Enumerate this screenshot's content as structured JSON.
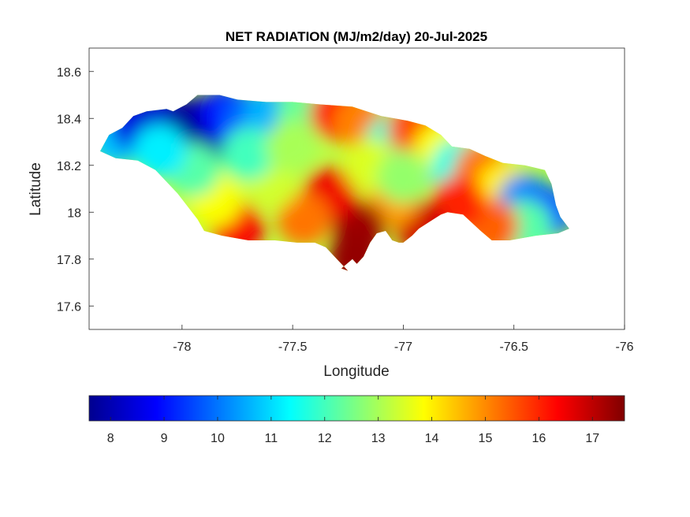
{
  "figure": {
    "title": "NET RADIATION (MJ/m2/day) 20-Jul-2025"
  },
  "chart_data": {
    "type": "heatmap",
    "title": "NET RADIATION (MJ/m2/day) 20-Jul-2025",
    "xlabel": "Longitude",
    "ylabel": "Latitude",
    "xlim": [
      -78.42,
      -76.0
    ],
    "ylim": [
      17.5,
      18.7
    ],
    "xticks": [
      -78,
      -77.5,
      -77,
      -76.5,
      -76
    ],
    "yticks": [
      17.6,
      17.8,
      18,
      18.2,
      18.4,
      18.6
    ],
    "grid": false,
    "colormap": "jet",
    "colorbar": {
      "location": "south",
      "range": [
        7.6,
        17.6
      ],
      "ticks": [
        8,
        9,
        10,
        11,
        12,
        13,
        14,
        15,
        16,
        17
      ]
    },
    "colors": [
      "#00008f",
      "#0000ff",
      "#00ffff",
      "#ffff00",
      "#ff0000",
      "#800000"
    ],
    "region_outline": [
      [
        -78.37,
        18.26
      ],
      [
        -78.33,
        18.33
      ],
      [
        -78.27,
        18.36
      ],
      [
        -78.22,
        18.41
      ],
      [
        -78.16,
        18.43
      ],
      [
        -78.07,
        18.44
      ],
      [
        -78.04,
        18.43
      ],
      [
        -77.98,
        18.46
      ],
      [
        -77.93,
        18.5
      ],
      [
        -77.83,
        18.5
      ],
      [
        -77.75,
        18.48
      ],
      [
        -77.62,
        18.47
      ],
      [
        -77.5,
        18.47
      ],
      [
        -77.38,
        18.46
      ],
      [
        -77.23,
        18.45
      ],
      [
        -77.1,
        18.41
      ],
      [
        -76.98,
        18.39
      ],
      [
        -76.9,
        18.37
      ],
      [
        -76.83,
        18.33
      ],
      [
        -76.78,
        18.28
      ],
      [
        -76.7,
        18.27
      ],
      [
        -76.63,
        18.24
      ],
      [
        -76.55,
        18.21
      ],
      [
        -76.45,
        18.2
      ],
      [
        -76.36,
        18.18
      ],
      [
        -76.33,
        18.12
      ],
      [
        -76.31,
        18.03
      ],
      [
        -76.29,
        17.98
      ],
      [
        -76.25,
        17.93
      ],
      [
        -76.3,
        17.91
      ],
      [
        -76.4,
        17.9
      ],
      [
        -76.52,
        17.88
      ],
      [
        -76.6,
        17.88
      ],
      [
        -76.65,
        17.92
      ],
      [
        -76.73,
        17.99
      ],
      [
        -76.8,
        18.0
      ],
      [
        -76.83,
        17.99
      ],
      [
        -76.88,
        17.96
      ],
      [
        -76.93,
        17.93
      ],
      [
        -76.96,
        17.9
      ],
      [
        -77.0,
        17.87
      ],
      [
        -77.02,
        17.87
      ],
      [
        -77.05,
        17.88
      ],
      [
        -77.08,
        17.92
      ],
      [
        -77.12,
        17.91
      ],
      [
        -77.15,
        17.87
      ],
      [
        -77.18,
        17.81
      ],
      [
        -77.19,
        17.8
      ],
      [
        -77.21,
        17.78
      ],
      [
        -77.23,
        17.8
      ],
      [
        -77.28,
        17.76
      ],
      [
        -77.22,
        17.74
      ],
      [
        -77.25,
        17.75
      ],
      [
        -77.3,
        17.8
      ],
      [
        -77.35,
        17.85
      ],
      [
        -77.4,
        17.87
      ],
      [
        -77.48,
        17.87
      ],
      [
        -77.58,
        17.88
      ],
      [
        -77.7,
        17.88
      ],
      [
        -77.82,
        17.9
      ],
      [
        -77.9,
        17.92
      ],
      [
        -77.93,
        17.97
      ],
      [
        -78.02,
        18.08
      ],
      [
        -78.12,
        18.18
      ],
      [
        -78.2,
        18.22
      ],
      [
        -78.3,
        18.23
      ]
    ],
    "value_field": [
      {
        "lon": -78.3,
        "lat": 18.31,
        "value": 10.8
      },
      {
        "lon": -78.2,
        "lat": 18.37,
        "value": 8.6
      },
      {
        "lon": -78.1,
        "lat": 18.4,
        "value": 8.4
      },
      {
        "lon": -77.95,
        "lat": 18.38,
        "value": 7.9
      },
      {
        "lon": -77.87,
        "lat": 18.33,
        "value": 7.8
      },
      {
        "lon": -77.8,
        "lat": 18.42,
        "value": 9.0
      },
      {
        "lon": -77.7,
        "lat": 18.4,
        "value": 9.8
      },
      {
        "lon": -77.6,
        "lat": 18.41,
        "value": 10.6
      },
      {
        "lon": -77.45,
        "lat": 18.42,
        "value": 12.4
      },
      {
        "lon": -77.3,
        "lat": 18.42,
        "value": 16.3
      },
      {
        "lon": -77.2,
        "lat": 18.38,
        "value": 15.1
      },
      {
        "lon": -77.05,
        "lat": 18.3,
        "value": 11.8
      },
      {
        "lon": -76.9,
        "lat": 18.24,
        "value": 10.6
      },
      {
        "lon": -76.95,
        "lat": 18.35,
        "value": 15.6
      },
      {
        "lon": -76.83,
        "lat": 18.27,
        "value": 13.8
      },
      {
        "lon": -76.75,
        "lat": 18.2,
        "value": 11.6
      },
      {
        "lon": -76.65,
        "lat": 18.18,
        "value": 15.2
      },
      {
        "lon": -76.55,
        "lat": 18.1,
        "value": 14.0
      },
      {
        "lon": -76.45,
        "lat": 18.05,
        "value": 10.2
      },
      {
        "lon": -76.35,
        "lat": 18.0,
        "value": 9.8
      },
      {
        "lon": -76.45,
        "lat": 17.94,
        "value": 12.2
      },
      {
        "lon": -76.6,
        "lat": 17.94,
        "value": 15.4
      },
      {
        "lon": -76.75,
        "lat": 18.04,
        "value": 16.0
      },
      {
        "lon": -76.92,
        "lat": 17.94,
        "value": 16.8
      },
      {
        "lon": -77.05,
        "lat": 18.05,
        "value": 14.8
      },
      {
        "lon": -77.2,
        "lat": 17.93,
        "value": 17.3
      },
      {
        "lon": -77.22,
        "lat": 17.8,
        "value": 17.4
      },
      {
        "lon": -77.33,
        "lat": 18.08,
        "value": 16.5
      },
      {
        "lon": -77.45,
        "lat": 17.97,
        "value": 15.2
      },
      {
        "lon": -77.6,
        "lat": 18.12,
        "value": 13.4
      },
      {
        "lon": -77.75,
        "lat": 17.93,
        "value": 16.4
      },
      {
        "lon": -77.85,
        "lat": 18.05,
        "value": 13.8
      },
      {
        "lon": -77.95,
        "lat": 18.18,
        "value": 12.2
      },
      {
        "lon": -78.1,
        "lat": 18.26,
        "value": 11.2
      },
      {
        "lon": -77.7,
        "lat": 18.25,
        "value": 12.0
      },
      {
        "lon": -77.5,
        "lat": 18.28,
        "value": 13.0
      },
      {
        "lon": -77.15,
        "lat": 18.2,
        "value": 13.5
      },
      {
        "lon": -77.0,
        "lat": 18.15,
        "value": 12.8
      }
    ]
  }
}
